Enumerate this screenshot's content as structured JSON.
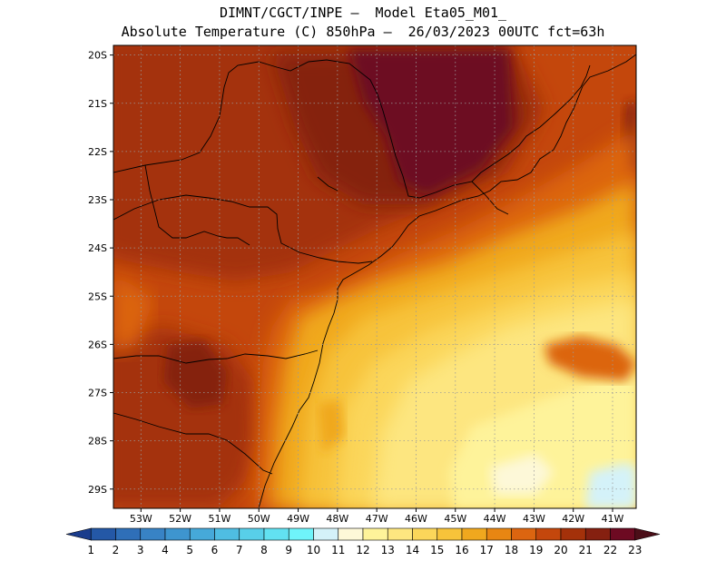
{
  "header": {
    "line1": "DIMNT/CGCT/INPE –  Model Eta05_M01_",
    "line2": "Absolute Temperature (C) 850hPa –  26/03/2023 00UTC fct=63h"
  },
  "map": {
    "variable": "Absolute Temperature",
    "units": "C",
    "level": "850hPa",
    "lon_range": [
      -53.7,
      -40.4
    ],
    "lat_range": [
      -29.4,
      -19.8
    ],
    "latitude_labels": [
      "20S",
      "21S",
      "22S",
      "23S",
      "24S",
      "25S",
      "26S",
      "27S",
      "28S",
      "29S"
    ],
    "longitude_labels": [
      "53W",
      "52W",
      "51W",
      "50W",
      "49W",
      "48W",
      "47W",
      "46W",
      "45W",
      "44W",
      "43W",
      "42W",
      "41W"
    ],
    "gridlines": "dotted"
  },
  "colorbar": {
    "labels": [
      "1",
      "2",
      "3",
      "4",
      "5",
      "6",
      "7",
      "8",
      "9",
      "10",
      "11",
      "12",
      "13",
      "14",
      "15",
      "16",
      "17",
      "18",
      "19",
      "20",
      "21",
      "22",
      "23"
    ],
    "colors": [
      "#1a3c8c",
      "#2458a6",
      "#2f6fb8",
      "#3883c5",
      "#3e95cf",
      "#46a9d9",
      "#4fbde2",
      "#58cfe9",
      "#62e1f1",
      "#6ff4fa",
      "#d4f2f9",
      "#fdf8d8",
      "#fef39a",
      "#fde680",
      "#fbd65a",
      "#f7c33a",
      "#f0a81e",
      "#e88612",
      "#dc6510",
      "#c4470c",
      "#a4310a",
      "#852010",
      "#6d0a22",
      "#4b0e18"
    ]
  }
}
